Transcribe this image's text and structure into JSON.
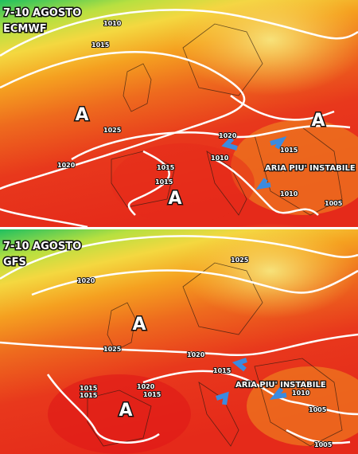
{
  "panels": [
    {
      "title": "7-10 AGOSTO",
      "model": "ECMWF",
      "highs": [
        "A",
        "A",
        "A"
      ],
      "isobar_labels": [
        "1010",
        "1015",
        "1025",
        "1020",
        "1015",
        "1015",
        "1020",
        "1010",
        "1015",
        "1010",
        "1005"
      ],
      "annotation": "ARIA PIU' INSTABILE"
    },
    {
      "title": "7-10 AGOSTO",
      "model": "GFS",
      "highs": [
        "A",
        "A"
      ],
      "isobar_labels": [
        "1025",
        "1020",
        "1025",
        "1020",
        "1015",
        "1015",
        "1015",
        "1020",
        "1015",
        "1010",
        "1005",
        "1005"
      ],
      "annotation": "ARIA PIU' INSTABILE"
    }
  ]
}
